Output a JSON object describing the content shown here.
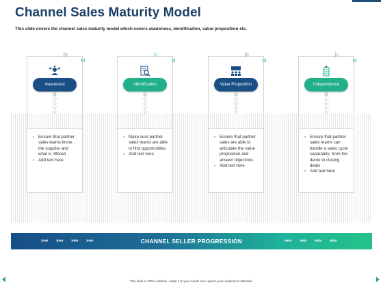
{
  "header": {
    "title": "Channel Sales Maturity Model",
    "subtitle": "This slide covers the channel sales maturity model which covers awareness, identification, value proposition etc."
  },
  "stages": [
    {
      "label": "Awareness",
      "icon": "people-network-icon",
      "color": "#1a4f86",
      "bullets": [
        "Ensure that partner sales teams know the supplier and what is offered",
        "Add text here"
      ]
    },
    {
      "label": "Identification",
      "icon": "search-document-icon",
      "color": "#22b08a",
      "bullets": [
        "Make sure partner sales teams are able to find opportunities",
        "Add text here"
      ]
    },
    {
      "label": "Value Proposition",
      "icon": "team-presentation-icon",
      "color": "#1a4f86",
      "bullets": [
        "Ensure that partner sales are able to articulate the value proposition and answer objections",
        "Add text here"
      ]
    },
    {
      "label": "Independence",
      "icon": "ladder-icon",
      "color": "#22b08a",
      "bullets": [
        "Ensure that partner sales teams can handle a sales cycle separately- from the demo to closing deals",
        "Add text here"
      ]
    }
  ],
  "progress": {
    "label": "CHANNEL SELLER PROGRESSION",
    "chevrons": "»»»"
  },
  "footer": {
    "text": "This slide is 100% editable. Adapt it to your needs and capture your audience's attention."
  },
  "colors": {
    "title": "#1a3f66",
    "dark_blue": "#1a4f86",
    "green": "#22b08a"
  }
}
